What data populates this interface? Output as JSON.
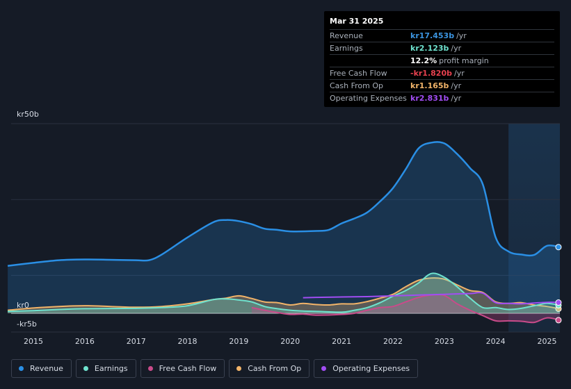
{
  "tooltip": {
    "date": "Mar 31 2025",
    "rows": [
      {
        "label": "Revenue",
        "value": "kr17.453b",
        "unit": "/yr",
        "color": "#3b94e0"
      },
      {
        "label": "Earnings",
        "value": "kr2.123b",
        "unit": "/yr",
        "color": "#6fe3cf"
      },
      {
        "label": "",
        "value": "12.2%",
        "unit": "profit margin",
        "color": "#ffffff"
      },
      {
        "label": "Free Cash Flow",
        "value": "-kr1.820b",
        "unit": "/yr",
        "color": "#e8414f"
      },
      {
        "label": "Cash From Op",
        "value": "kr1.165b",
        "unit": "/yr",
        "color": "#f2b469"
      },
      {
        "label": "Operating Expenses",
        "value": "kr2.831b",
        "unit": "/yr",
        "color": "#a14df3"
      }
    ]
  },
  "legend": [
    {
      "label": "Revenue",
      "color": "#2a8fe5"
    },
    {
      "label": "Earnings",
      "color": "#6fe3cf"
    },
    {
      "label": "Free Cash Flow",
      "color": "#c94b8a"
    },
    {
      "label": "Cash From Op",
      "color": "#f2b469"
    },
    {
      "label": "Operating Expenses",
      "color": "#a14df3"
    }
  ],
  "chart_data": {
    "type": "area",
    "y_axis_labels": [
      "kr50b",
      "kr0",
      "-kr5b"
    ],
    "ylim": [
      -5,
      50
    ],
    "xlim": [
      2014.5,
      2025.25
    ],
    "x_ticks": [
      2015,
      2016,
      2017,
      2018,
      2019,
      2020,
      2021,
      2022,
      2023,
      2024,
      2025
    ],
    "x_tick_labels": [
      "2015",
      "2016",
      "2017",
      "2018",
      "2019",
      "2020",
      "2021",
      "2022",
      "2023",
      "2024",
      "2025"
    ],
    "forecast_start": 2024.25,
    "series": [
      {
        "name": "Revenue",
        "color": "#2a8fe5",
        "fill": true,
        "x": [
          2014.5,
          2015.0,
          2015.5,
          2016.0,
          2016.5,
          2017.0,
          2017.25,
          2017.5,
          2018.0,
          2018.5,
          2018.75,
          2019.0,
          2019.25,
          2019.5,
          2019.75,
          2020.0,
          2020.5,
          2020.75,
          2021.0,
          2021.25,
          2021.5,
          2021.75,
          2022.0,
          2022.25,
          2022.5,
          2022.75,
          2023.0,
          2023.25,
          2023.5,
          2023.75,
          2024.0,
          2024.25,
          2024.5,
          2024.75,
          2025.0,
          2025.25
        ],
        "y": [
          12.5,
          13.3,
          14.0,
          14.2,
          14.1,
          14.0,
          14.0,
          15.5,
          20.0,
          24.0,
          24.6,
          24.3,
          23.5,
          22.3,
          22.0,
          21.6,
          21.7,
          22.0,
          23.7,
          25.0,
          26.6,
          29.5,
          33.0,
          38.0,
          43.5,
          45.0,
          44.8,
          42.0,
          38.3,
          34.0,
          20.0,
          16.3,
          15.5,
          15.4,
          17.8,
          17.45
        ],
        "dot_at_end": true
      },
      {
        "name": "Earnings",
        "color": "#6fe3cf",
        "fill": true,
        "x": [
          2014.5,
          2015.0,
          2015.5,
          2016.0,
          2017.0,
          2017.5,
          2018.0,
          2018.5,
          2018.75,
          2019.0,
          2019.25,
          2019.5,
          2019.75,
          2020.0,
          2020.25,
          2020.5,
          2021.0,
          2021.25,
          2021.5,
          2021.75,
          2022.0,
          2022.25,
          2022.5,
          2022.75,
          2023.0,
          2023.25,
          2023.5,
          2023.75,
          2024.0,
          2024.25,
          2024.5,
          2024.75,
          2025.0,
          2025.25
        ],
        "y": [
          0.5,
          0.7,
          1.0,
          1.2,
          1.3,
          1.5,
          2.0,
          3.6,
          3.8,
          3.5,
          3.0,
          1.8,
          1.2,
          0.8,
          0.6,
          0.5,
          0.3,
          0.8,
          1.5,
          2.8,
          4.5,
          6.0,
          8.0,
          10.5,
          9.5,
          7.0,
          4.0,
          1.5,
          1.5,
          1.0,
          1.3,
          2.0,
          2.6,
          2.12
        ],
        "dot_at_end": true
      },
      {
        "name": "Free Cash Flow",
        "color": "#c94b8a",
        "fill": true,
        "x": [
          2019.25,
          2019.5,
          2019.75,
          2020.0,
          2020.25,
          2020.5,
          2021.0,
          2021.25,
          2021.5,
          2021.75,
          2022.0,
          2022.25,
          2022.5,
          2022.75,
          2023.0,
          2023.25,
          2023.5,
          2023.75,
          2024.0,
          2024.25,
          2024.5,
          2024.75,
          2025.0,
          2025.25
        ],
        "y": [
          1.5,
          0.8,
          0.2,
          -0.3,
          -0.2,
          -0.5,
          -0.3,
          0.0,
          0.8,
          1.5,
          1.8,
          3.0,
          4.2,
          4.8,
          4.7,
          2.5,
          0.8,
          -0.6,
          -2.0,
          -2.0,
          -2.1,
          -2.4,
          -1.2,
          -1.82
        ],
        "dot_at_end": true
      },
      {
        "name": "Cash From Op",
        "color": "#f2b469",
        "fill": true,
        "x": [
          2014.5,
          2015.0,
          2015.5,
          2016.0,
          2016.5,
          2017.0,
          2017.5,
          2018.0,
          2018.5,
          2018.75,
          2019.0,
          2019.25,
          2019.5,
          2019.75,
          2020.0,
          2020.25,
          2020.5,
          2020.75,
          2021.0,
          2021.25,
          2021.5,
          2021.75,
          2022.0,
          2022.25,
          2022.5,
          2022.75,
          2023.0,
          2023.25,
          2023.5,
          2023.75,
          2024.0,
          2024.25,
          2024.5,
          2024.75,
          2025.0,
          2025.25
        ],
        "y": [
          0.8,
          1.4,
          1.8,
          2.0,
          1.8,
          1.6,
          1.8,
          2.5,
          3.6,
          4.0,
          4.6,
          3.9,
          3.0,
          2.8,
          2.2,
          2.6,
          2.3,
          2.2,
          2.5,
          2.5,
          3.1,
          4.0,
          5.0,
          7.0,
          8.7,
          9.3,
          9.0,
          7.5,
          6.0,
          5.5,
          3.0,
          2.6,
          2.8,
          2.2,
          1.8,
          1.17
        ],
        "dot_at_end": true
      },
      {
        "name": "Operating Expenses",
        "color": "#a14df3",
        "fill": false,
        "x": [
          2020.25,
          2020.5,
          2021.0,
          2021.5,
          2022.0,
          2022.5,
          2023.0,
          2023.5,
          2023.75,
          2024.0,
          2024.25,
          2024.5,
          2024.75,
          2025.0,
          2025.25
        ],
        "y": [
          4.1,
          4.2,
          4.3,
          4.4,
          4.6,
          4.8,
          5.0,
          5.2,
          5.3,
          2.8,
          2.6,
          2.5,
          2.7,
          2.9,
          2.83
        ],
        "dot_at_end": true
      }
    ]
  }
}
